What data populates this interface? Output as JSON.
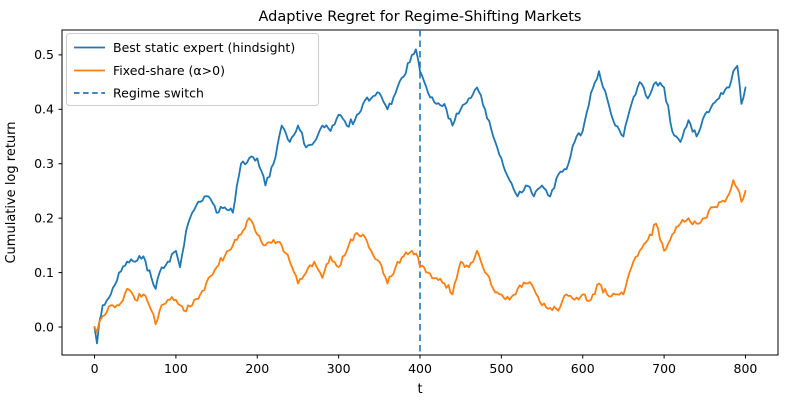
{
  "chart_data": {
    "type": "line",
    "title": "Adaptive Regret for Regime-Shifting Markets",
    "xlabel": "t",
    "ylabel": "Cumulative log return",
    "grid": false,
    "legend_position": "upper left",
    "xlim": [
      -40,
      840
    ],
    "ylim": [
      -0.0514,
      0.5457
    ],
    "x_ticks": [
      0,
      100,
      200,
      300,
      400,
      500,
      600,
      700,
      800
    ],
    "y_ticks": [
      0.0,
      0.1,
      0.2,
      0.3,
      0.4,
      0.5
    ],
    "x": [
      0,
      3,
      6,
      10,
      20,
      30,
      40,
      50,
      60,
      70,
      75,
      80,
      90,
      100,
      105,
      110,
      115,
      120,
      130,
      140,
      150,
      160,
      170,
      175,
      180,
      190,
      200,
      210,
      220,
      230,
      240,
      250,
      260,
      270,
      280,
      290,
      300,
      310,
      320,
      330,
      340,
      350,
      360,
      370,
      380,
      390,
      395,
      400,
      410,
      420,
      430,
      440,
      450,
      460,
      470,
      480,
      490,
      500,
      510,
      520,
      530,
      540,
      550,
      560,
      570,
      580,
      590,
      600,
      610,
      620,
      630,
      640,
      650,
      660,
      670,
      680,
      690,
      700,
      710,
      720,
      730,
      740,
      750,
      760,
      770,
      780,
      785,
      790,
      795,
      800
    ],
    "series": [
      {
        "name": "Best static expert (hindsight)",
        "color": "#1f77b4",
        "line_style": "solid",
        "values": [
          0.0,
          -0.03,
          0.01,
          0.04,
          0.06,
          0.1,
          0.12,
          0.12,
          0.13,
          0.09,
          0.07,
          0.1,
          0.12,
          0.14,
          0.11,
          0.15,
          0.19,
          0.21,
          0.23,
          0.24,
          0.21,
          0.22,
          0.21,
          0.26,
          0.3,
          0.31,
          0.31,
          0.26,
          0.3,
          0.37,
          0.34,
          0.37,
          0.33,
          0.34,
          0.37,
          0.36,
          0.39,
          0.37,
          0.38,
          0.41,
          0.42,
          0.43,
          0.4,
          0.43,
          0.46,
          0.5,
          0.51,
          0.47,
          0.43,
          0.41,
          0.41,
          0.37,
          0.4,
          0.42,
          0.44,
          0.4,
          0.35,
          0.31,
          0.27,
          0.24,
          0.26,
          0.24,
          0.26,
          0.24,
          0.28,
          0.29,
          0.34,
          0.36,
          0.43,
          0.47,
          0.42,
          0.37,
          0.35,
          0.41,
          0.45,
          0.42,
          0.45,
          0.44,
          0.36,
          0.34,
          0.38,
          0.35,
          0.39,
          0.41,
          0.43,
          0.44,
          0.47,
          0.48,
          0.41,
          0.44
        ]
      },
      {
        "name": "Fixed-share (α>0)",
        "color": "#ff7f0e",
        "line_style": "solid",
        "values": [
          0.0,
          -0.01,
          0.01,
          0.02,
          0.04,
          0.04,
          0.07,
          0.05,
          0.06,
          0.03,
          0.005,
          0.03,
          0.05,
          0.05,
          0.04,
          0.03,
          0.04,
          0.04,
          0.06,
          0.09,
          0.11,
          0.13,
          0.15,
          0.16,
          0.17,
          0.2,
          0.17,
          0.15,
          0.16,
          0.15,
          0.12,
          0.08,
          0.1,
          0.12,
          0.09,
          0.13,
          0.11,
          0.14,
          0.17,
          0.17,
          0.14,
          0.12,
          0.08,
          0.11,
          0.13,
          0.14,
          0.135,
          0.11,
          0.1,
          0.09,
          0.08,
          0.06,
          0.12,
          0.11,
          0.14,
          0.1,
          0.07,
          0.06,
          0.05,
          0.07,
          0.08,
          0.07,
          0.04,
          0.035,
          0.03,
          0.06,
          0.05,
          0.06,
          0.05,
          0.08,
          0.06,
          0.06,
          0.06,
          0.11,
          0.14,
          0.16,
          0.19,
          0.14,
          0.17,
          0.19,
          0.2,
          0.19,
          0.2,
          0.22,
          0.23,
          0.245,
          0.27,
          0.255,
          0.23,
          0.25
        ]
      }
    ],
    "vline": {
      "label": "Regime switch",
      "x_value": 400,
      "color": "#1f77b4",
      "line_style": "dashed"
    }
  }
}
